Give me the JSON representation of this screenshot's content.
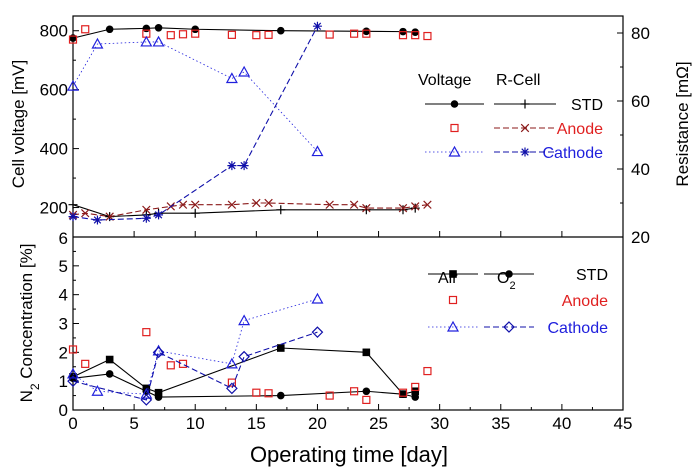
{
  "chart_data": [
    {
      "type": "line",
      "panel": "top",
      "xlabel": "",
      "ylabel": "Cell voltage [mV]",
      "y2label": "Resistance [mΩ]",
      "xlim": [
        0,
        45
      ],
      "ylim": [
        100,
        850
      ],
      "y2lim": [
        20,
        85
      ],
      "yticks": [
        "200",
        "400",
        "600",
        "800"
      ],
      "y2ticks": [
        "20",
        "40",
        "60",
        "80"
      ],
      "legend": {
        "position": "top-right",
        "headers": [
          "Voltage",
          "R-Cell"
        ],
        "rows": [
          "STD",
          "Anode",
          "Cathode"
        ]
      },
      "series": [
        {
          "name": "STD",
          "group": "Voltage",
          "axis": "left",
          "color": "#000000",
          "marker": "filled-circle",
          "line": "solid",
          "x": [
            0,
            3,
            6,
            7,
            10,
            17,
            24,
            27,
            28
          ],
          "y": [
            775,
            805,
            808,
            810,
            805,
            800,
            798,
            797,
            795
          ]
        },
        {
          "name": "Anode",
          "group": "Voltage",
          "axis": "left",
          "color": "#e02020",
          "marker": "open-square",
          "line": "none",
          "x": [
            0,
            1,
            6,
            8,
            9,
            10,
            13,
            15,
            16,
            21,
            23,
            24,
            27,
            28,
            29
          ],
          "y": [
            770,
            805,
            790,
            785,
            788,
            790,
            786,
            785,
            786,
            787,
            790,
            790,
            785,
            785,
            782
          ]
        },
        {
          "name": "Cathode",
          "group": "Voltage",
          "axis": "left",
          "color": "#2020dd",
          "marker": "open-triangle",
          "line": "dotted",
          "x": [
            0,
            2,
            6,
            7,
            13,
            14,
            20
          ],
          "y": [
            612,
            755,
            762,
            762,
            638,
            660,
            390
          ]
        },
        {
          "name": "STD",
          "group": "R-Cell",
          "axis": "right",
          "color": "#000000",
          "marker": "plus",
          "line": "solid",
          "x": [
            0,
            3,
            6,
            7,
            10,
            17,
            24,
            27,
            28
          ],
          "y": [
            29.5,
            26,
            26.5,
            27,
            27,
            28,
            28,
            28,
            28.5
          ]
        },
        {
          "name": "Anode",
          "group": "R-Cell",
          "axis": "right",
          "color": "#8b1a1a",
          "marker": "x",
          "line": "dashed",
          "x": [
            0,
            1,
            3,
            6,
            8,
            9,
            10,
            13,
            15,
            16,
            21,
            23,
            24,
            27,
            28,
            29
          ],
          "y": [
            26.5,
            27,
            26,
            28,
            29,
            29.5,
            29.5,
            29.5,
            30,
            30,
            29.5,
            29.5,
            28.5,
            28.5,
            29,
            29.5
          ]
        },
        {
          "name": "Cathode",
          "group": "R-Cell",
          "axis": "right",
          "color": "#1010aa",
          "marker": "asterisk",
          "line": "dashed",
          "x": [
            0,
            2,
            6,
            7,
            13,
            14,
            20
          ],
          "y": [
            26,
            25,
            25.5,
            26.5,
            41,
            41,
            82
          ]
        }
      ]
    },
    {
      "type": "line",
      "panel": "bottom",
      "xlabel": "Operating time [day]",
      "ylabel": "N₂ Concentration [%]",
      "xlim": [
        0,
        45
      ],
      "ylim": [
        0,
        6
      ],
      "xticks": [
        "0",
        "5",
        "10",
        "15",
        "20",
        "25",
        "30",
        "35",
        "40",
        "45"
      ],
      "yticks": [
        "0",
        "1",
        "2",
        "3",
        "4",
        "5",
        "6"
      ],
      "legend": {
        "position": "top-right",
        "headers": [
          "Air",
          "O₂"
        ],
        "rows": [
          "STD",
          "Anode",
          "Cathode"
        ]
      },
      "series": [
        {
          "name": "STD",
          "group": "Air",
          "color": "#000000",
          "marker": "filled-square",
          "line": "solid",
          "x": [
            0,
            3,
            6,
            7,
            17,
            24,
            27,
            28
          ],
          "y": [
            1.15,
            1.75,
            0.75,
            0.6,
            2.15,
            2.0,
            0.55,
            0.65
          ]
        },
        {
          "name": "STD",
          "group": "O₂",
          "color": "#000000",
          "marker": "filled-circle",
          "line": "solid",
          "x": [
            0,
            3,
            6,
            7,
            17,
            24,
            27,
            28
          ],
          "y": [
            1.1,
            1.25,
            0.65,
            0.45,
            0.5,
            0.65,
            0.55,
            0.45
          ]
        },
        {
          "name": "Anode",
          "group": "Air",
          "color": "#e02020",
          "marker": "open-square",
          "line": "none",
          "x": [
            0,
            1,
            6,
            8,
            9,
            13,
            15,
            16,
            21,
            23,
            24,
            27,
            28,
            29
          ],
          "y": [
            2.1,
            1.6,
            2.7,
            1.55,
            1.6,
            0.95,
            0.6,
            0.58,
            0.5,
            0.65,
            0.35,
            0.6,
            0.8,
            1.35
          ]
        },
        {
          "name": "Cathode",
          "group": "Air",
          "color": "#2020dd",
          "marker": "open-triangle",
          "line": "dotted",
          "x": [
            0,
            2,
            6,
            7,
            13,
            14,
            20
          ],
          "y": [
            1.25,
            0.65,
            0.55,
            2.05,
            1.6,
            3.1,
            3.85
          ]
        },
        {
          "name": "Cathode",
          "group": "O₂",
          "color": "#1010aa",
          "marker": "open-diamond",
          "line": "dashed",
          "x": [
            0,
            6,
            7,
            13,
            14,
            20
          ],
          "y": [
            1.0,
            0.35,
            2.0,
            0.75,
            1.85,
            2.7
          ]
        }
      ]
    }
  ]
}
